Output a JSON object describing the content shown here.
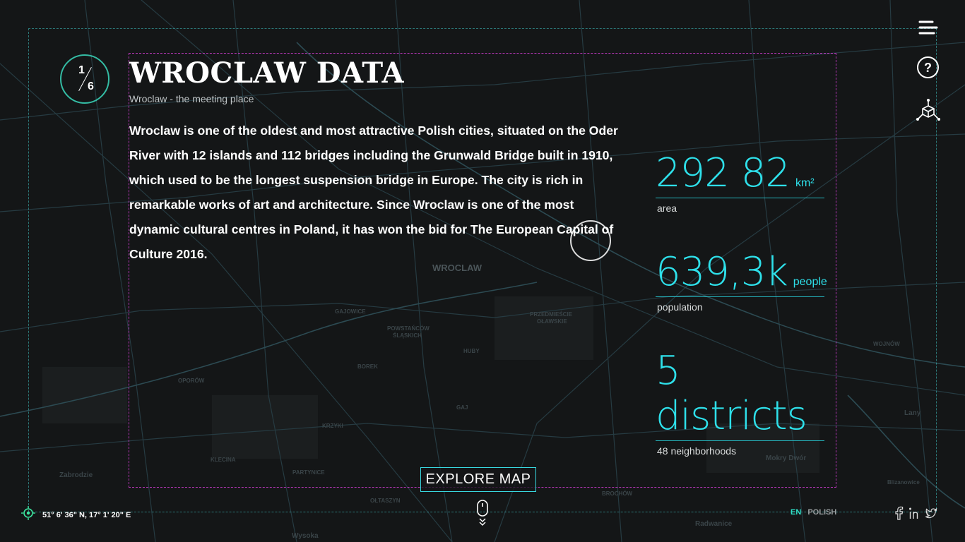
{
  "counter": {
    "current": "1",
    "total": "6"
  },
  "header": {
    "title": "WROCLAW DATA",
    "subtitle": "Wroclaw - the meeting place"
  },
  "description": "Wroclaw is one of the oldest and most attractive Polish cities, situated on the Oder River with 12 islands and 112 bridges including the Grunwald Bridge built in 1910, which used to be the longest suspension bridge in Europe. The city is rich in remarkable works of art and architecture. Since Wroclaw is one of the most dynamic cultural centres in Poland, it has won the bid for The European Capital of Culture 2016.",
  "stats": [
    {
      "value": "292 82",
      "unit": "km²",
      "label": "area"
    },
    {
      "value": "639,3k",
      "unit": "people",
      "label": "population"
    },
    {
      "value": "5 districts",
      "unit": "",
      "label": "48 neighborhoods"
    }
  ],
  "explore_button": "EXPLORE MAP",
  "coordinates": "51° 6' 36\" N, 17° 1' 20\" E",
  "language": {
    "active": "EN",
    "other": "POLISH"
  },
  "map_labels": [
    "WROCLAW",
    "GAJOWICE",
    "POWSTAŃCÓW ŚLĄSKICH",
    "HUBY",
    "BOREK",
    "KRZYKI",
    "GAJ",
    "OPORÓW",
    "KLECINA",
    "PARTYNICE",
    "OŁTASZYN",
    "Zabrodzie",
    "BROCHÓW",
    "Radwanice",
    "Wysoka",
    "Lany",
    "Blizanowice",
    "Mokry Dwór",
    "WOJNÓW",
    "PRZEDMIEŚCIE OŁAWSKIE"
  ],
  "icons": {
    "menu": "hamburger-icon",
    "help": "question-icon",
    "view3d": "cube-3d-icon",
    "location": "crosshair-icon",
    "scroll": "mouse-scroll-icon",
    "facebook": "facebook-icon",
    "linkedin": "linkedin-icon",
    "twitter": "twitter-icon"
  },
  "colors": {
    "accent": "#2ee0ea",
    "counter_ring": "#3ce6c8",
    "inner_frame": "#d23cd2",
    "background": "#141617"
  }
}
